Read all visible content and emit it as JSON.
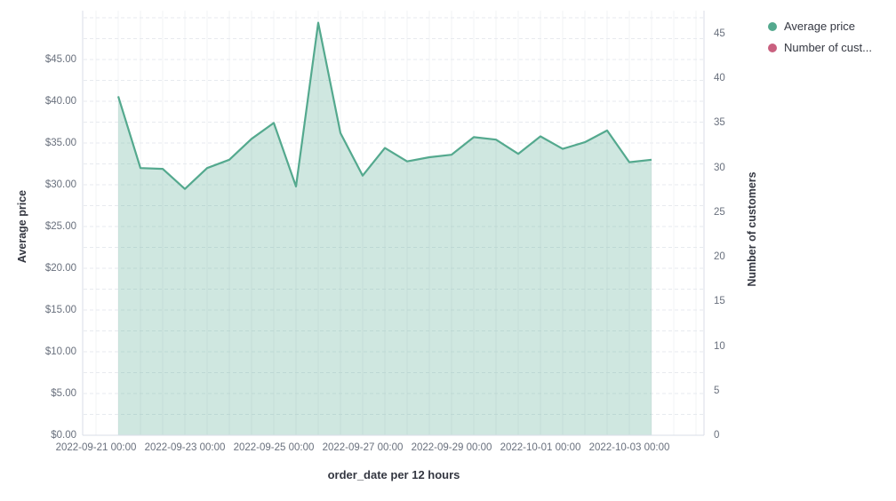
{
  "chart_data": {
    "type": "area",
    "title": "",
    "xlabel": "order_date per 12 hours",
    "ylabel_left": "Average price",
    "ylabel_right": "Number of customers",
    "legend_position": "top-right",
    "grid": true,
    "x": [
      "2022-09-21 12:00",
      "2022-09-22 00:00",
      "2022-09-22 12:00",
      "2022-09-23 00:00",
      "2022-09-23 12:00",
      "2022-09-24 00:00",
      "2022-09-24 12:00",
      "2022-09-25 00:00",
      "2022-09-25 12:00",
      "2022-09-26 00:00",
      "2022-09-26 12:00",
      "2022-09-27 00:00",
      "2022-09-27 12:00",
      "2022-09-28 00:00",
      "2022-09-28 12:00",
      "2022-09-29 00:00",
      "2022-09-29 12:00",
      "2022-09-30 00:00",
      "2022-09-30 12:00",
      "2022-10-01 00:00",
      "2022-10-01 12:00",
      "2022-10-02 00:00",
      "2022-10-02 12:00",
      "2022-10-03 00:00",
      "2022-10-03 12:00"
    ],
    "series": [
      {
        "name": "Average price",
        "axis": "left",
        "color": "#54a98e",
        "fill_opacity": 0.28,
        "values": [
          40.6,
          32.0,
          31.9,
          29.5,
          32.0,
          33.0,
          35.5,
          37.4,
          29.8,
          49.4,
          36.2,
          31.1,
          34.4,
          32.8,
          33.3,
          33.6,
          35.7,
          35.4,
          33.7,
          35.8,
          34.3,
          35.1,
          36.5,
          32.7,
          33.0
        ]
      },
      {
        "name": "Number of cust...",
        "axis": "right",
        "color": "#c9607f",
        "values": []
      }
    ],
    "y_left_axis": {
      "tick_labels": [
        "$0.00",
        "$5.00",
        "$10.00",
        "$15.00",
        "$20.00",
        "$25.00",
        "$30.00",
        "$35.00",
        "$40.00",
        "$45.00"
      ],
      "tick_values": [
        0,
        5,
        10,
        15,
        20,
        25,
        30,
        35,
        40,
        45
      ],
      "range": [
        0,
        50.5
      ]
    },
    "y_right_axis": {
      "tick_labels": [
        "0",
        "5",
        "10",
        "15",
        "20",
        "25",
        "30",
        "35",
        "40",
        "45"
      ],
      "tick_values": [
        0,
        5,
        10,
        15,
        20,
        25,
        30,
        35,
        40,
        45
      ],
      "range": [
        0,
        47.5
      ]
    },
    "x_axis": {
      "ticks": [
        {
          "label": "2022-09-21 00:00",
          "halfday_index": 0
        },
        {
          "label": "2022-09-23 00:00",
          "halfday_index": 4
        },
        {
          "label": "2022-09-25 00:00",
          "halfday_index": 8
        },
        {
          "label": "2022-09-27 00:00",
          "halfday_index": 12
        },
        {
          "label": "2022-09-29 00:00",
          "halfday_index": 16
        },
        {
          "label": "2022-10-01 00:00",
          "halfday_index": 20
        },
        {
          "label": "2022-10-03 00:00",
          "halfday_index": 24
        }
      ]
    }
  },
  "legend": {
    "items": [
      {
        "label": "Average price",
        "color": "#54a98e"
      },
      {
        "label": "Number of cust...",
        "color": "#c9607f"
      }
    ]
  },
  "colors": {
    "area_line": "#54a98e",
    "secondary_series": "#c9607f",
    "axis_line": "#d9dee7",
    "grid_dashed": "#e7eaef",
    "grid_vertical": "#f1f3f6",
    "tick_text": "#69707d",
    "title_text": "#343741"
  }
}
